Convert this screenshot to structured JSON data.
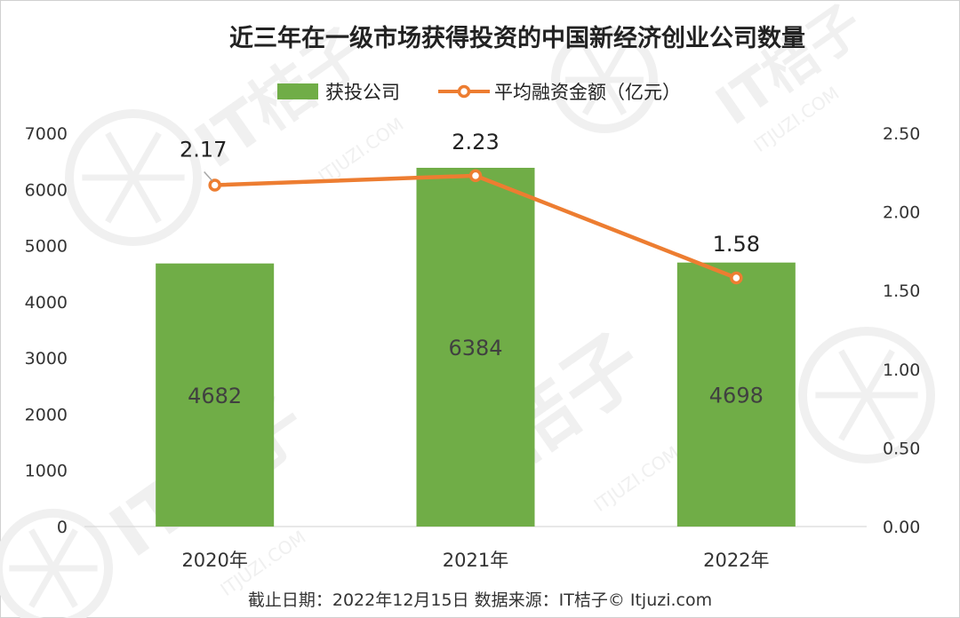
{
  "chart_data": {
    "type": "bar",
    "title": "近三年在一级市场获得投资的中国新经济创业公司数量",
    "categories": [
      "2020年",
      "2021年",
      "2022年"
    ],
    "series": [
      {
        "name": "获投公司",
        "type": "bar",
        "axis": "left",
        "values": [
          4682,
          6384,
          4698
        ],
        "color": "#70ad47"
      },
      {
        "name": "平均融资金额（亿元）",
        "type": "line",
        "axis": "right",
        "values": [
          2.17,
          2.23,
          1.58
        ],
        "color": "#ed7d31"
      }
    ],
    "data_labels": {
      "bars": [
        "4682",
        "6384",
        "4698"
      ],
      "line": [
        "2.17",
        "2.23",
        "1.58"
      ]
    },
    "y_left": {
      "min": 0,
      "max": 7000,
      "ticks": [
        "0",
        "1000",
        "2000",
        "3000",
        "4000",
        "5000",
        "6000",
        "7000"
      ]
    },
    "y_right": {
      "min": 0,
      "max": 2.5,
      "ticks": [
        "0.00",
        "0.50",
        "1.00",
        "1.50",
        "2.00",
        "2.50"
      ]
    },
    "grid": false,
    "legend_position": "top"
  },
  "footer": "截止日期：2022年12月15日   数据来源：IT桔子© Itjuzi.com",
  "watermark": {
    "text": "IT桔子",
    "subtext": "ITJUZI.COM",
    "color": "#f0f0f0"
  }
}
